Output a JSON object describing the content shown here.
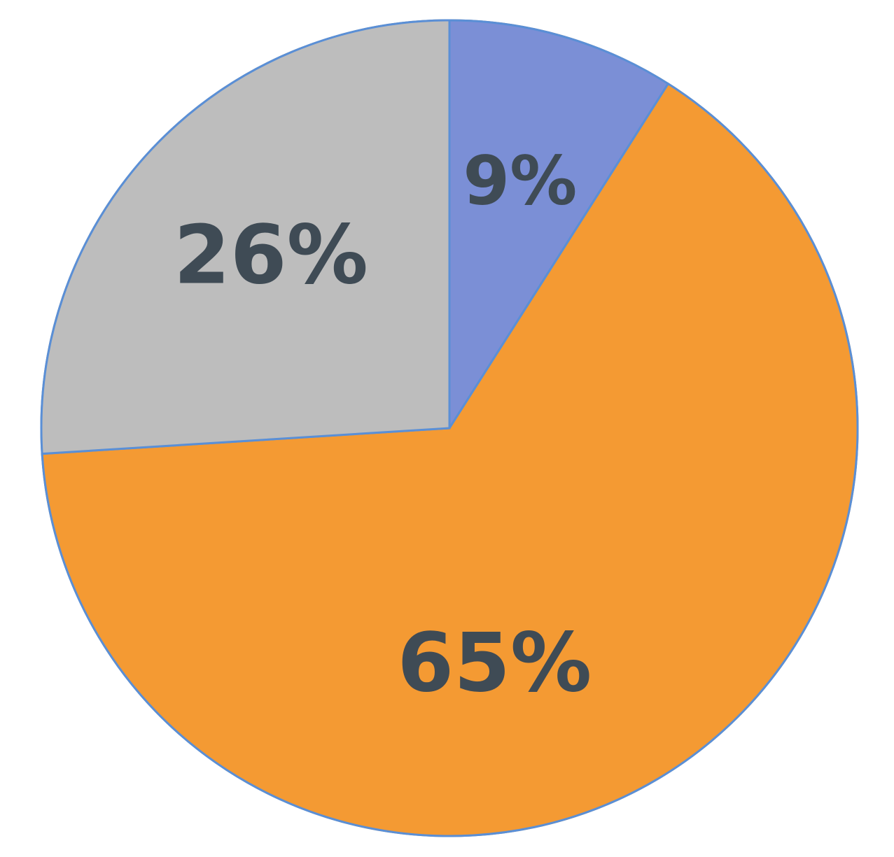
{
  "chart_data": {
    "type": "pie",
    "title": "",
    "start_angle_deg": 0,
    "direction": "clockwise",
    "legend": "none",
    "slices": [
      {
        "value": 9,
        "label": "9%",
        "color": "#7b8fd6"
      },
      {
        "value": 65,
        "label": "65%",
        "color": "#f49a33"
      },
      {
        "value": 26,
        "label": "26%",
        "color": "#bdbdbd"
      }
    ]
  }
}
